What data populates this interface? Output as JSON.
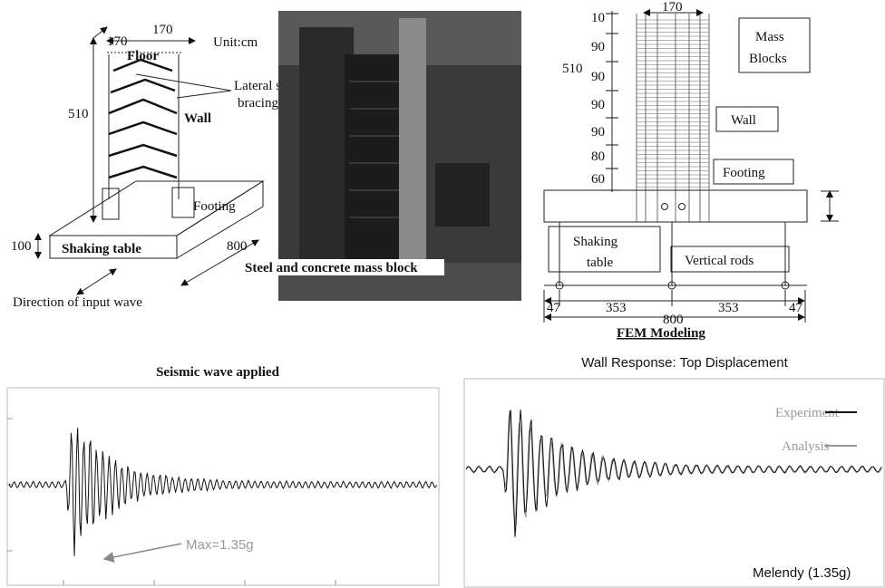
{
  "schematic": {
    "top_width": "170",
    "depth": "170",
    "floor": "Floor",
    "unit": "Unit:cm",
    "bracing": [
      "Lateral steel",
      "bracing"
    ],
    "height": "510",
    "wall": "Wall",
    "footing": "Footing",
    "table_height": "100",
    "table": "Shaking table",
    "table_length": "800",
    "direction": "Direction of input wave"
  },
  "photo": {
    "caption": "Steel and concrete mass block"
  },
  "fem": {
    "width": "170",
    "heights": [
      "10",
      "90",
      "90",
      "90",
      "90",
      "80",
      "60"
    ],
    "total_height": "510",
    "mass_blocks": [
      "Mass",
      "Blocks"
    ],
    "wall": "Wall",
    "footing": "Footing",
    "table": [
      "Shaking",
      "table"
    ],
    "rods": "Vertical rods",
    "spans": [
      "47",
      "353",
      "353",
      "47"
    ],
    "total_length": "800",
    "title": "FEM Modeling"
  },
  "input_wave": {
    "title": "Seismic wave applied",
    "annotation": "Max=1.35g"
  },
  "response": {
    "title": "Wall Response: Top Displacement",
    "legend": [
      "Experiment",
      "Analysis"
    ],
    "note": "Melendy (1.35g)"
  }
}
